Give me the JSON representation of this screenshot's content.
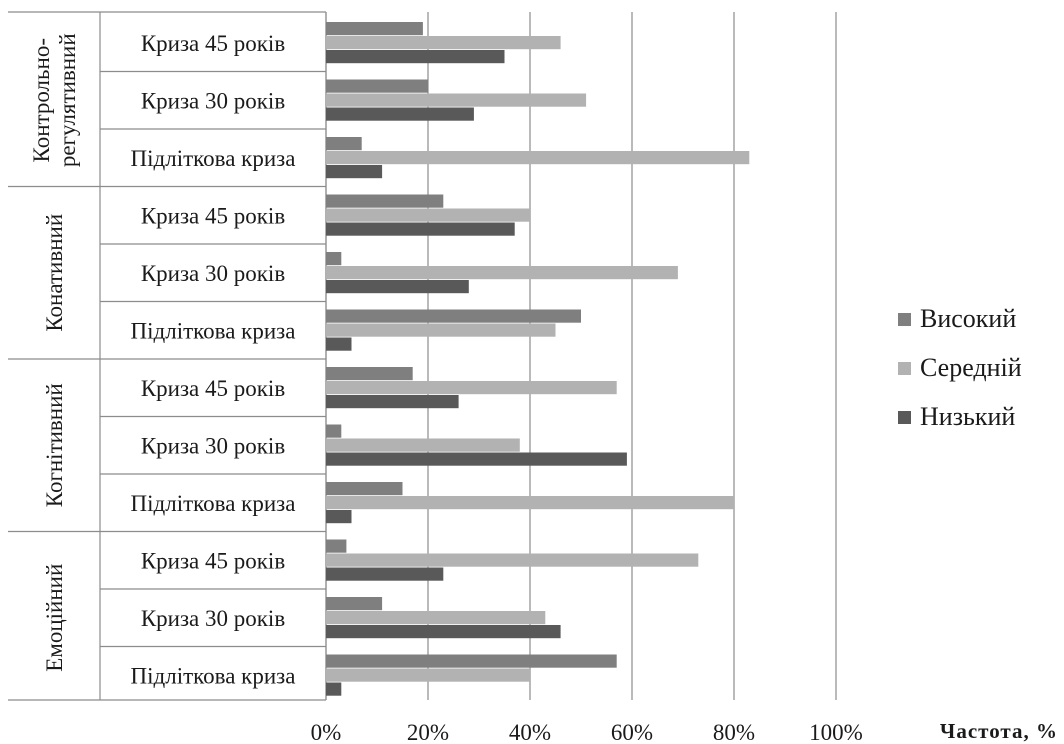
{
  "chart_data": {
    "type": "bar",
    "orientation": "horizontal",
    "xlabel": "Частота, %",
    "xlim": [
      0,
      100
    ],
    "xticks": [
      "0%",
      "20%",
      "40%",
      "60%",
      "80%",
      "100%"
    ],
    "grid": "vertical",
    "legend_position": "right",
    "categories": [
      {
        "group": "Контрольно-регулятивний",
        "name": "Криза 45 років"
      },
      {
        "group": "Контрольно-регулятивний",
        "name": "Криза 30 років"
      },
      {
        "group": "Контрольно-регулятивний",
        "name": "Підліткова криза"
      },
      {
        "group": "Конативний",
        "name": "Криза 45 років"
      },
      {
        "group": "Конативний",
        "name": "Криза 30 років"
      },
      {
        "group": "Конативний",
        "name": "Підліткова криза"
      },
      {
        "group": "Когнітивний",
        "name": "Криза 45 років"
      },
      {
        "group": "Когнітивний",
        "name": "Криза 30 років"
      },
      {
        "group": "Когнітивний",
        "name": "Підліткова криза"
      },
      {
        "group": "Емоційний",
        "name": "Криза 45 років"
      },
      {
        "group": "Емоційний",
        "name": "Криза 30 років"
      },
      {
        "group": "Емоційний",
        "name": "Підліткова криза"
      }
    ],
    "groups": [
      {
        "lines": [
          "Контрольно-",
          "регулятивний"
        ],
        "rows": 3
      },
      {
        "lines": [
          "Конативний"
        ],
        "rows": 3
      },
      {
        "lines": [
          "Когнітивний"
        ],
        "rows": 3
      },
      {
        "lines": [
          "Емоційний"
        ],
        "rows": 3
      }
    ],
    "series": [
      {
        "name": "Високий",
        "color": "#7f7f7f",
        "values": [
          19,
          20,
          7,
          23,
          3,
          50,
          17,
          3,
          15,
          4,
          11,
          57
        ]
      },
      {
        "name": "Середній",
        "color": "#b2b2b2",
        "values": [
          46,
          51,
          83,
          40,
          69,
          45,
          57,
          38,
          80,
          73,
          43,
          40
        ]
      },
      {
        "name": "Низький",
        "color": "#595959",
        "values": [
          35,
          29,
          11,
          37,
          28,
          5,
          26,
          59,
          5,
          23,
          46,
          3
        ]
      }
    ]
  }
}
